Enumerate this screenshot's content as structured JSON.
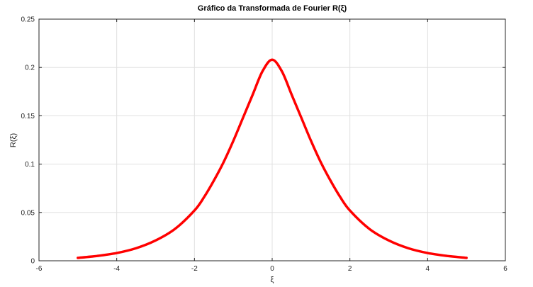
{
  "chart_data": {
    "type": "line",
    "title": "Gráfico da Transformada de Fourier R(ξ)",
    "xlabel": "ξ",
    "ylabel": "R(ξ)",
    "xlim": [
      -6,
      6
    ],
    "ylim": [
      0,
      0.25
    ],
    "xticks": [
      "-6",
      "-4",
      "-2",
      "0",
      "2",
      "4",
      "6"
    ],
    "yticks": [
      "0",
      "0.05",
      "0.1",
      "0.15",
      "0.2",
      "0.25"
    ],
    "grid": true,
    "series": [
      {
        "color": "#ff0000",
        "x": [
          -5,
          -4.5,
          -4,
          -3.5,
          -3,
          -2.5,
          -2,
          -1.75,
          -1.5,
          -1.25,
          -1,
          -0.75,
          -0.5,
          -0.25,
          0,
          0.25,
          0.5,
          0.75,
          1,
          1.25,
          1.5,
          1.75,
          2,
          2.5,
          3,
          3.5,
          4,
          4.5,
          5
        ],
        "y": [
          0.003,
          0.005,
          0.008,
          0.013,
          0.021,
          0.033,
          0.052,
          0.066,
          0.083,
          0.102,
          0.124,
          0.148,
          0.172,
          0.196,
          0.208,
          0.196,
          0.172,
          0.148,
          0.124,
          0.102,
          0.083,
          0.066,
          0.052,
          0.033,
          0.021,
          0.013,
          0.008,
          0.005,
          0.003
        ]
      }
    ]
  }
}
